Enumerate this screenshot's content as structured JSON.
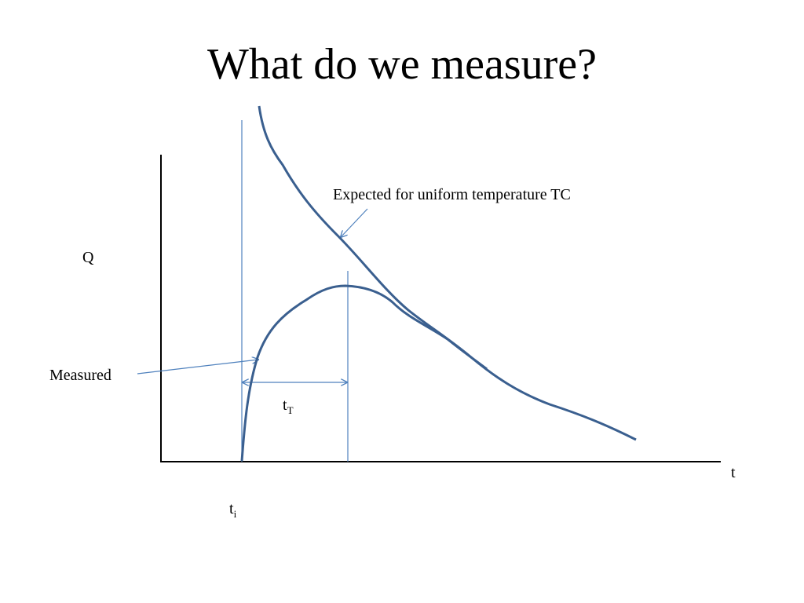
{
  "title": "What do we measure?",
  "labels": {
    "expected": "Expected for uniform temperature TC",
    "q_axis": "Q",
    "measured": "Measured",
    "t_axis": "t",
    "t_T": {
      "base": "t",
      "sub": "T"
    },
    "t_i": {
      "base": "t",
      "sub": "i"
    }
  }
}
